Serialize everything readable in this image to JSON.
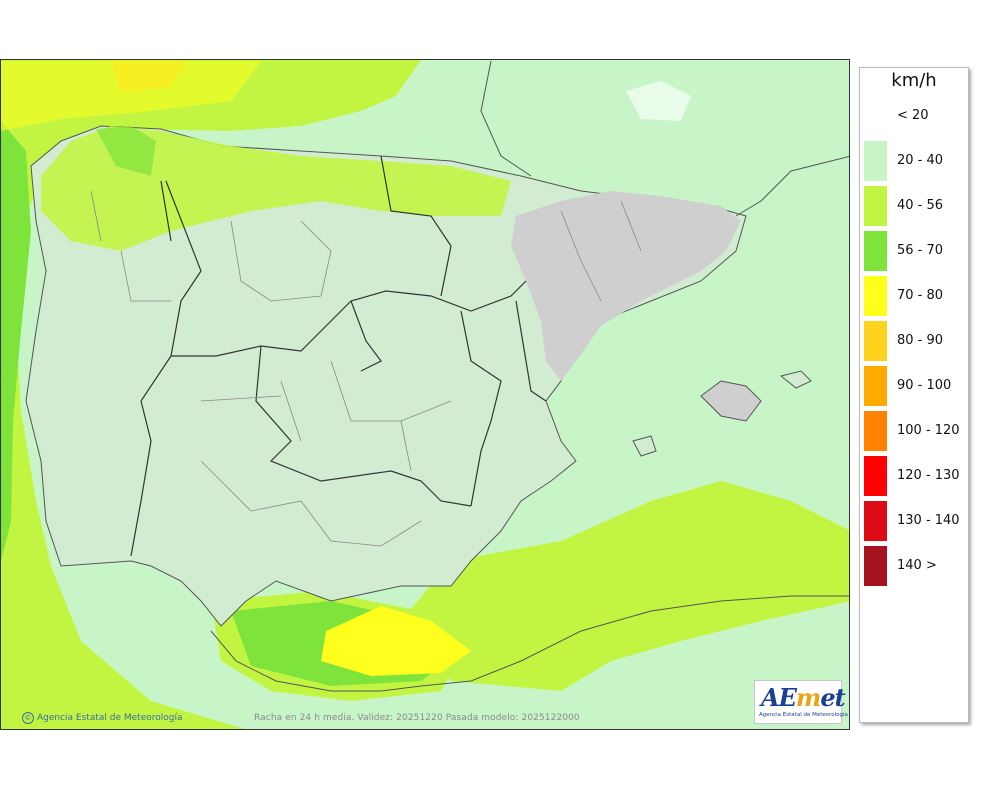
{
  "legend": {
    "unit": "km/h",
    "items": [
      {
        "label": "< 20",
        "color": "#ffffff"
      },
      {
        "label": "20 - 40",
        "color": "#c8f5c8"
      },
      {
        "label": "40 - 56",
        "color": "#c2f542"
      },
      {
        "label": "56 - 70",
        "color": "#7ee33a"
      },
      {
        "label": "70 - 80",
        "color": "#ffff1e"
      },
      {
        "label": "80 - 90",
        "color": "#ffd21e"
      },
      {
        "label": "90 - 100",
        "color": "#ffaa00"
      },
      {
        "label": "100 - 120",
        "color": "#ff8200"
      },
      {
        "label": "120 - 130",
        "color": "#ff0000"
      },
      {
        "label": "130 - 140",
        "color": "#dc0a14"
      },
      {
        "label": "140 >",
        "color": "#a5141e"
      }
    ]
  },
  "footer": {
    "credit": "Agencia Estatal de Meteorología",
    "caption": "Racha en 24 h media. Validez: 20251220 Pasada modelo: 2025122000"
  },
  "logo": {
    "wordmark": "AEmet",
    "subtitle": "Agencia Estatal de Meteorología"
  }
}
